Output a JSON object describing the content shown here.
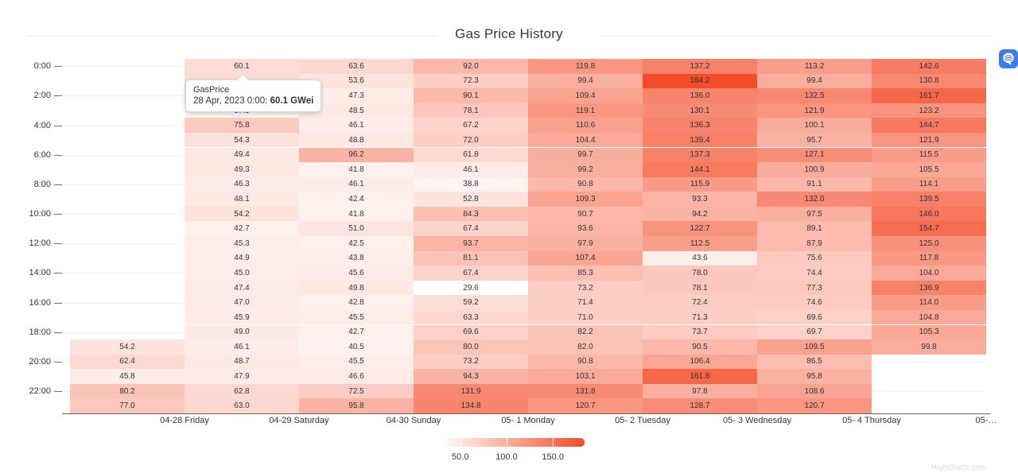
{
  "tooltip": {
    "header": "GasPrice",
    "body_prefix": "28 Apr, 2023 0:00: ",
    "body_value": "60.1 GWei"
  },
  "watermark": "Highcharts.com",
  "extension_icon": {
    "name": "brain-extension-icon",
    "bg": "#3e7ce9"
  },
  "chart_data": {
    "type": "heatmap",
    "title": "Gas Price History",
    "unit": "GWei",
    "rows": 24,
    "y_axis_labels": [
      "0:00",
      "2:00",
      "4:00",
      "6:00",
      "8:00",
      "10:00",
      "12:00",
      "14:00",
      "16:00",
      "18:00",
      "20:00",
      "22:00"
    ],
    "x_axis_labels": [
      "04-28 Friday",
      "04-29 Saturday",
      "04-30 Sunday",
      "05- 1 Monday",
      "05- 2 Tuesday",
      "05- 3 Wednesday",
      "05- 4 Thursday",
      "05-…"
    ],
    "color_axis": {
      "min": 29.6,
      "max": 184.2,
      "min_color": "#ffffff",
      "max_color": "#f44c29"
    },
    "legend": {
      "tick_labels": [
        "50.0",
        "100.0",
        "150.0"
      ],
      "tick_values": [
        50,
        100,
        150
      ],
      "position": "bottom-center"
    },
    "grid": true,
    "columns": [
      {
        "label": "",
        "values": [
          null,
          null,
          null,
          null,
          null,
          null,
          null,
          null,
          null,
          null,
          null,
          null,
          null,
          null,
          null,
          null,
          null,
          null,
          null,
          54.2,
          62.4,
          45.8,
          80.2,
          77.0
        ]
      },
      {
        "label": "04-28 Friday",
        "values": [
          60.1,
          null,
          null,
          37.5,
          75.8,
          54.3,
          49.4,
          49.3,
          46.3,
          48.1,
          54.2,
          42.7,
          45.3,
          44.9,
          45.0,
          47.4,
          47.0,
          45.9,
          49.0,
          46.1,
          48.7,
          47.9,
          62.8,
          63.0
        ]
      },
      {
        "label": "04-29 Saturday",
        "values": [
          63.6,
          53.6,
          47.3,
          48.5,
          46.1,
          48.8,
          96.2,
          41.8,
          46.1,
          42.4,
          41.8,
          51.0,
          42.5,
          43.8,
          45.6,
          49.8,
          42.8,
          45.5,
          42.7,
          40.5,
          45.5,
          46.6,
          72.5,
          95.8
        ]
      },
      {
        "label": "04-30 Sunday",
        "values": [
          92.0,
          72.3,
          90.1,
          78.1,
          67.2,
          72.0,
          61.8,
          46.1,
          38.8,
          52.8,
          84.3,
          67.4,
          93.7,
          81.1,
          67.4,
          29.6,
          59.2,
          63.3,
          69.6,
          80.0,
          73.2,
          94.3,
          131.9,
          134.8
        ]
      },
      {
        "label": "05- 1 Monday",
        "values": [
          119.8,
          99.4,
          109.4,
          119.1,
          110.6,
          104.4,
          99.7,
          99.2,
          90.8,
          109.3,
          90.7,
          93.6,
          97.9,
          107.4,
          85.3,
          73.2,
          71.4,
          71.0,
          82.2,
          82.0,
          90.8,
          103.1,
          131.8,
          120.7
        ]
      },
      {
        "label": "05- 2 Tuesday",
        "values": [
          137.2,
          184.2,
          136.0,
          130.1,
          136.3,
          139.4,
          137.3,
          144.1,
          115.9,
          93.3,
          94.2,
          122.7,
          112.5,
          43.6,
          78.0,
          78.1,
          72.4,
          71.3,
          73.7,
          90.5,
          106.4,
          161.8,
          97.8,
          128.7
        ]
      },
      {
        "label": "05- 3 Wednesday",
        "values": [
          113.2,
          99.4,
          132.5,
          121.9,
          100.1,
          95.7,
          127.1,
          100.9,
          91.1,
          132.0,
          97.5,
          89.1,
          87.9,
          75.6,
          74.4,
          77.3,
          74.6,
          69.6,
          69.7,
          109.5,
          86.5,
          95.8,
          108.6,
          120.7
        ]
      },
      {
        "label": "05- 4 Thursday",
        "values": [
          142.6,
          130.8,
          161.7,
          123.2,
          144.7,
          121.9,
          115.5,
          105.5,
          114.1,
          139.5,
          146.0,
          154.7,
          125.0,
          117.8,
          104.0,
          136.9,
          114.0,
          104.8,
          105.3,
          99.8,
          null,
          null,
          null,
          null
        ]
      }
    ],
    "covered_cells": [
      {
        "col": 1,
        "rows": [
          1,
          2
        ],
        "approx_color": "#fbdcd2"
      }
    ]
  }
}
